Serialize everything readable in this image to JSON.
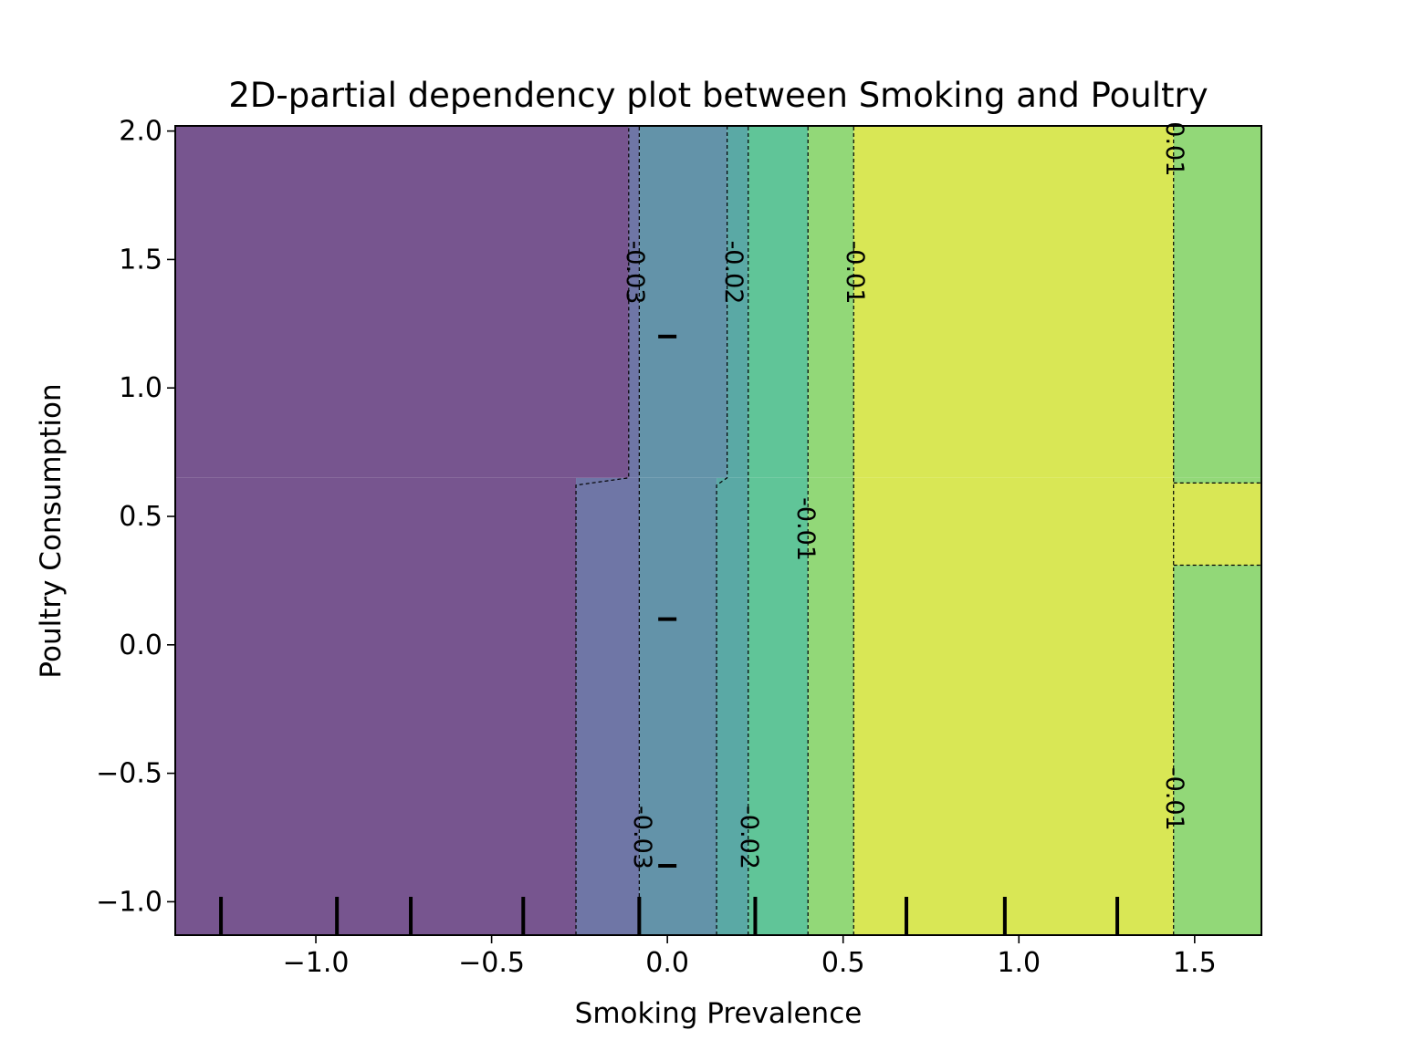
{
  "chart_data": {
    "type": "heatmap",
    "title": "2D-partial dependency plot between Smoking and Poultry",
    "xlabel": "Smoking Prevalence",
    "ylabel": "Poultry Consumption",
    "xlim": [
      -1.4,
      1.69
    ],
    "ylim": [
      -1.13,
      2.02
    ],
    "xticks": [
      -1.0,
      -0.5,
      0.0,
      0.5,
      1.0,
      1.5
    ],
    "xtick_labels": [
      "−1.0",
      "−0.5",
      "0.0",
      "0.5",
      "1.0",
      "1.5"
    ],
    "yticks": [
      -1.0,
      -0.5,
      0.0,
      0.5,
      1.0,
      1.5,
      2.0
    ],
    "ytick_labels": [
      "−1.0",
      "−0.5",
      "0.0",
      "0.5",
      "1.0",
      "1.5",
      "2.0"
    ],
    "grid": false,
    "legend": "none",
    "colormap": "viridis",
    "bands_lower": [
      {
        "x0": -1.4,
        "x1": -0.26,
        "color": "#77558f"
      },
      {
        "x0": -0.26,
        "x1": -0.08,
        "color": "#6f76a6"
      },
      {
        "x0": -0.08,
        "x1": 0.14,
        "color": "#6393a9"
      },
      {
        "x0": 0.14,
        "x1": 0.23,
        "color": "#5aa9a5"
      },
      {
        "x0": 0.23,
        "x1": 0.4,
        "color": "#60c598"
      },
      {
        "x0": 0.4,
        "x1": 0.53,
        "color": "#92d878"
      },
      {
        "x0": 0.53,
        "x1": 1.44,
        "color": "#d9e755"
      },
      {
        "x0": 1.44,
        "x1": 1.69,
        "color": "#92d878"
      }
    ],
    "bands_upper": [
      {
        "x0": -1.4,
        "x1": -0.11,
        "color": "#77558f"
      },
      {
        "x0": -0.11,
        "x1": -0.08,
        "color": "#6f76a6"
      },
      {
        "x0": -0.08,
        "x1": 0.17,
        "color": "#6393a9"
      },
      {
        "x0": 0.17,
        "x1": 0.23,
        "color": "#5aa9a5"
      },
      {
        "x0": 0.23,
        "x1": 0.4,
        "color": "#60c598"
      },
      {
        "x0": 0.4,
        "x1": 0.53,
        "color": "#92d878"
      },
      {
        "x0": 0.53,
        "x1": 1.44,
        "color": "#d9e755"
      },
      {
        "x0": 1.44,
        "x1": 1.69,
        "color": "#92d878"
      }
    ],
    "transition_y": [
      0.3,
      0.65
    ],
    "right_strip": {
      "x0": 1.44,
      "x1": 1.69,
      "y0": 0.31,
      "y1": 0.63,
      "color": "#d9e755"
    },
    "contour_lines_lower": [
      -0.26,
      -0.08,
      0.14,
      0.23,
      0.4,
      0.53,
      1.44
    ],
    "contour_lines_upper": [
      -0.11,
      -0.08,
      0.17,
      0.23,
      0.4,
      0.53,
      1.44
    ],
    "contour_labels": [
      {
        "text": "-0.03",
        "x": -0.095,
        "y": 1.45
      },
      {
        "text": "-0.02",
        "x": 0.185,
        "y": 1.45
      },
      {
        "text": "-0.01",
        "x": 0.53,
        "y": 1.45
      },
      {
        "text": "-0.01",
        "x": 0.39,
        "y": 0.45
      },
      {
        "text": "0.01",
        "x": 1.44,
        "y": 1.93
      },
      {
        "text": "-0.03",
        "x": -0.075,
        "y": -0.75
      },
      {
        "text": "-0.02",
        "x": 0.23,
        "y": -0.75
      },
      {
        "text": "-0.01",
        "x": 1.44,
        "y": -0.6
      }
    ],
    "deciles_x": [
      -1.27,
      -0.94,
      -0.73,
      -0.41,
      -0.08,
      0.25,
      0.68,
      0.96,
      1.28
    ],
    "deciles_y": [
      1.2,
      0.1,
      -0.86
    ]
  }
}
